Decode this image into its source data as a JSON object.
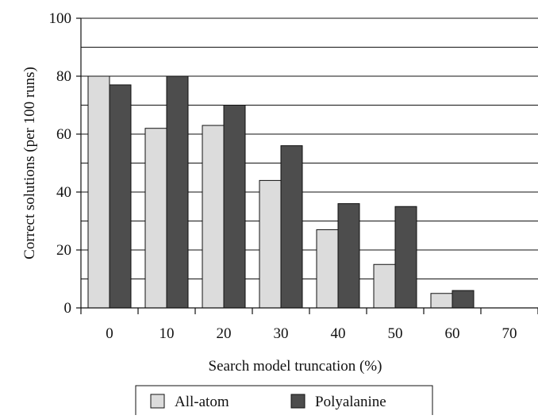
{
  "chart_data": {
    "type": "bar",
    "categories": [
      "0",
      "10",
      "20",
      "30",
      "40",
      "50",
      "60",
      "70"
    ],
    "series": [
      {
        "name": "All-atom",
        "values": [
          80,
          62,
          63,
          44,
          27,
          15,
          5,
          0
        ],
        "color": "#dcdcdc"
      },
      {
        "name": "Polyalanine",
        "values": [
          77,
          80,
          70,
          56,
          36,
          35,
          6,
          0
        ],
        "color": "#4d4d4d"
      }
    ],
    "title": "",
    "xlabel": "Search model truncation (%)",
    "ylabel": "Correct solutions (per 100 runs)",
    "ylim": [
      0,
      100
    ],
    "yticks": [
      "0",
      "20",
      "40",
      "60",
      "80",
      "100"
    ],
    "grid": true,
    "legend_position": "bottom"
  }
}
